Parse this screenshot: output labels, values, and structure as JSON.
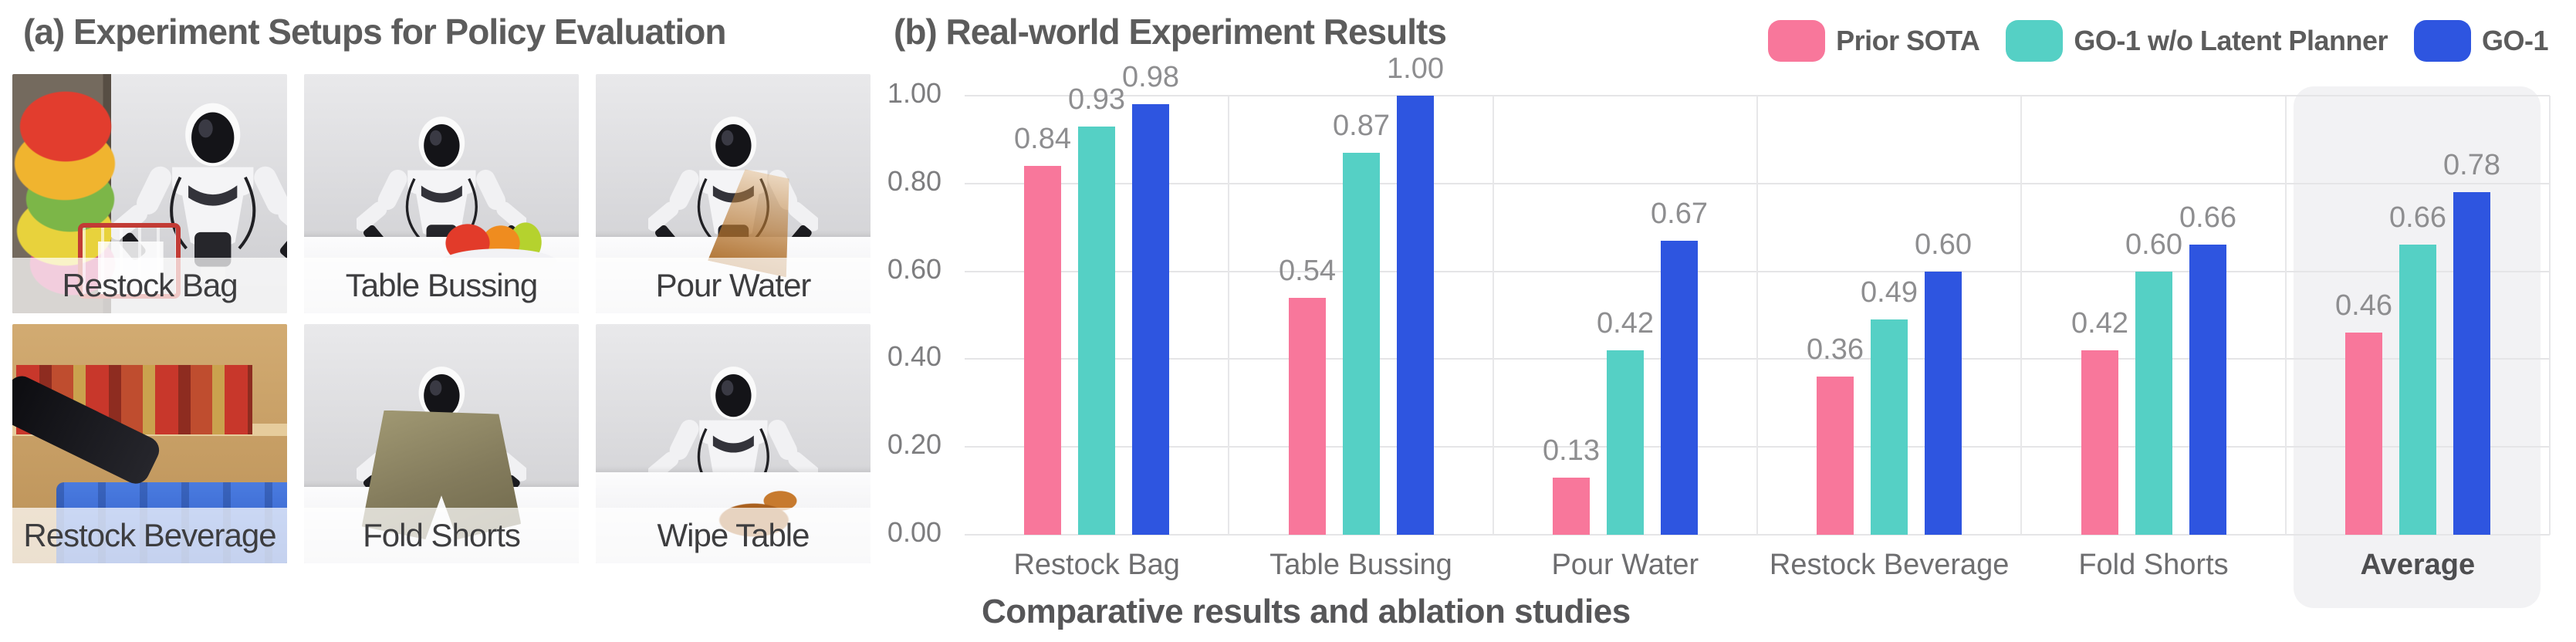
{
  "figure": {
    "panel_a": {
      "title": "(a) Experiment Setups for Policy Evaluation",
      "tiles": [
        {
          "label": "Restock Bag",
          "scene": "restock-bag"
        },
        {
          "label": "Table Bussing",
          "scene": "table-bussing"
        },
        {
          "label": "Pour Water",
          "scene": "pour-water"
        },
        {
          "label": "Restock Beverage",
          "scene": "restock-beverage"
        },
        {
          "label": "Fold Shorts",
          "scene": "fold-shorts"
        },
        {
          "label": "Wipe Table",
          "scene": "wipe-table"
        }
      ]
    },
    "panel_b": {
      "title": "(b) Real-world Experiment Results",
      "caption": "Comparative results and ablation studies"
    }
  },
  "chart_data": {
    "type": "bar",
    "title": "(b) Real-world Experiment Results",
    "categories": [
      "Restock Bag",
      "Table Bussing",
      "Pour Water",
      "Restock Beverage",
      "Fold Shorts",
      "Average"
    ],
    "series": [
      {
        "name": "Prior SOTA",
        "color": "#F8779B",
        "values": [
          0.84,
          0.54,
          0.13,
          0.36,
          0.42,
          0.46
        ]
      },
      {
        "name": "GO-1 w/o Latent Planner",
        "color": "#55D0C5",
        "values": [
          0.93,
          0.87,
          0.42,
          0.49,
          0.6,
          0.66
        ]
      },
      {
        "name": "GO-1",
        "color": "#2E55E0",
        "values": [
          0.98,
          1.0,
          0.67,
          0.6,
          0.66,
          0.78
        ]
      }
    ],
    "xlabel": "",
    "ylabel": "",
    "ylim": [
      0,
      1
    ],
    "yticks": [
      "0.00",
      "0.20",
      "0.40",
      "0.60",
      "0.80",
      "1.00"
    ],
    "grid": true,
    "legend_position": "top-right",
    "highlight_category": "Average",
    "highlight_color": "#F2F2F4",
    "value_label_color": "#8e8e90"
  }
}
